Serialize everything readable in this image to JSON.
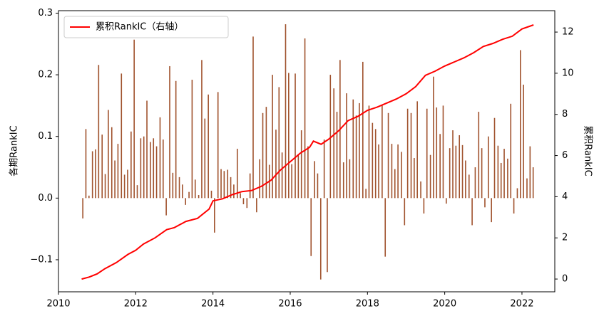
{
  "chart_data": {
    "type": "bar_line",
    "legend": "upper left",
    "y_label": "各期RankIC",
    "y2_label": "累积RankIC",
    "xlim": [
      2010.0,
      2022.85
    ],
    "xticks": [
      2010,
      2012,
      2014,
      2016,
      2018,
      2020,
      2022
    ],
    "ylim": [
      -0.152,
      0.304
    ],
    "yticks": [
      {
        "value": -0.1,
        "label": "−0.1"
      },
      {
        "value": 0,
        "label": "0.0"
      },
      0.1,
      0.2,
      0.3
    ],
    "y2lim": [
      -0.62,
      13.04
    ],
    "y2ticks": [
      0,
      2,
      4,
      6,
      8,
      10,
      12
    ],
    "series": [
      {
        "type": "bar",
        "color": "#a0522d",
        "x": [
          2010.63,
          2010.71,
          2010.79,
          2010.88,
          2010.96,
          2011.04,
          2011.13,
          2011.21,
          2011.29,
          2011.38,
          2011.46,
          2011.54,
          2011.63,
          2011.71,
          2011.79,
          2011.88,
          2011.96,
          2012.04,
          2012.13,
          2012.21,
          2012.29,
          2012.38,
          2012.46,
          2012.54,
          2012.63,
          2012.71,
          2012.79,
          2012.88,
          2012.96,
          2013.04,
          2013.13,
          2013.21,
          2013.29,
          2013.38,
          2013.46,
          2013.54,
          2013.63,
          2013.71,
          2013.79,
          2013.88,
          2013.96,
          2014.04,
          2014.13,
          2014.21,
          2014.29,
          2014.38,
          2014.46,
          2014.54,
          2014.63,
          2014.71,
          2014.79,
          2014.88,
          2014.96,
          2015.04,
          2015.13,
          2015.21,
          2015.29,
          2015.38,
          2015.46,
          2015.54,
          2015.63,
          2015.71,
          2015.79,
          2015.88,
          2015.96,
          2016.04,
          2016.13,
          2016.21,
          2016.29,
          2016.38,
          2016.46,
          2016.54,
          2016.63,
          2016.71,
          2016.79,
          2016.88,
          2016.96,
          2017.04,
          2017.13,
          2017.21,
          2017.29,
          2017.38,
          2017.46,
          2017.54,
          2017.63,
          2017.71,
          2017.79,
          2017.88,
          2017.96,
          2018.04,
          2018.13,
          2018.21,
          2018.29,
          2018.38,
          2018.46,
          2018.54,
          2018.63,
          2018.71,
          2018.79,
          2018.88,
          2018.96,
          2019.04,
          2019.13,
          2019.21,
          2019.29,
          2019.38,
          2019.46,
          2019.54,
          2019.63,
          2019.71,
          2019.79,
          2019.88,
          2019.96,
          2020.04,
          2020.13,
          2020.21,
          2020.29,
          2020.38,
          2020.46,
          2020.54,
          2020.63,
          2020.71,
          2020.79,
          2020.88,
          2020.96,
          2021.04,
          2021.13,
          2021.21,
          2021.29,
          2021.38,
          2021.46,
          2021.54,
          2021.63,
          2021.71,
          2021.79,
          2021.88,
          2021.96,
          2022.04,
          2022.13,
          2022.21,
          2022.29
        ],
        "values": [
          -0.033,
          0.112,
          0.004,
          0.076,
          0.079,
          0.216,
          0.103,
          0.039,
          0.143,
          0.115,
          0.061,
          0.088,
          0.202,
          0.038,
          0.046,
          0.108,
          0.257,
          0.021,
          0.097,
          0.1,
          0.158,
          0.091,
          0.097,
          0.084,
          0.131,
          0.095,
          -0.028,
          0.214,
          0.041,
          0.19,
          0.034,
          0.022,
          -0.011,
          0.01,
          0.192,
          0.03,
          0.005,
          0.224,
          0.129,
          0.168,
          0.012,
          -0.056,
          0.172,
          0.047,
          0.044,
          0.046,
          0.034,
          0.022,
          0.08,
          0.008,
          -0.01,
          -0.016,
          0.04,
          0.262,
          -0.023,
          0.063,
          0.138,
          0.148,
          0.054,
          0.2,
          0.111,
          0.18,
          0.074,
          0.282,
          0.203,
          0.055,
          0.202,
          0.07,
          0.11,
          0.259,
          0.084,
          -0.094,
          0.06,
          0.04,
          -0.132,
          0.095,
          -0.12,
          0.2,
          0.178,
          0.14,
          0.224,
          0.058,
          0.17,
          0.063,
          0.16,
          0.134,
          0.154,
          0.221,
          0.015,
          0.15,
          0.122,
          0.112,
          0.087,
          0.15,
          -0.095,
          0.138,
          0.088,
          0.047,
          0.087,
          0.075,
          -0.044,
          0.145,
          0.138,
          0.065,
          0.157,
          0.027,
          -0.025,
          0.145,
          0.07,
          0.197,
          0.147,
          0.104,
          0.15,
          -0.009,
          0.081,
          0.11,
          0.085,
          0.102,
          0.086,
          0.061,
          0.038,
          -0.044,
          0.05,
          0.14,
          0.081,
          -0.015,
          0.1,
          -0.039,
          0.13,
          0.085,
          0.057,
          0.08,
          0.064,
          0.153,
          -0.025,
          0.016,
          0.24,
          0.184,
          0.032,
          0.084,
          0.05
        ]
      },
      {
        "type": "line",
        "name": "累积RankIC（右轴）",
        "color": "#ff0000",
        "axis": "y2",
        "x": [
          2010.6,
          2010.8,
          2011.0,
          2011.2,
          2011.5,
          2011.8,
          2012.0,
          2012.2,
          2012.5,
          2012.8,
          2013.0,
          2013.3,
          2013.6,
          2013.9,
          2014.0,
          2014.25,
          2014.5,
          2014.75,
          2015.0,
          2015.25,
          2015.5,
          2015.75,
          2016.0,
          2016.25,
          2016.5,
          2016.6,
          2016.8,
          2017.0,
          2017.25,
          2017.5,
          2017.75,
          2018.0,
          2018.25,
          2018.5,
          2018.75,
          2019.0,
          2019.25,
          2019.5,
          2019.75,
          2020.0,
          2020.25,
          2020.5,
          2020.75,
          2021.0,
          2021.25,
          2021.5,
          2021.75,
          2022.0,
          2022.3
        ],
        "values": [
          0.0,
          0.1,
          0.25,
          0.5,
          0.8,
          1.2,
          1.4,
          1.7,
          2.0,
          2.4,
          2.5,
          2.8,
          2.95,
          3.4,
          3.8,
          3.9,
          4.1,
          4.25,
          4.3,
          4.5,
          4.8,
          5.3,
          5.7,
          6.1,
          6.4,
          6.7,
          6.55,
          6.8,
          7.2,
          7.7,
          7.9,
          8.2,
          8.35,
          8.55,
          8.75,
          9.0,
          9.35,
          9.9,
          10.1,
          10.35,
          10.55,
          10.75,
          11.0,
          11.3,
          11.45,
          11.65,
          11.8,
          12.15,
          12.35
        ]
      }
    ]
  }
}
